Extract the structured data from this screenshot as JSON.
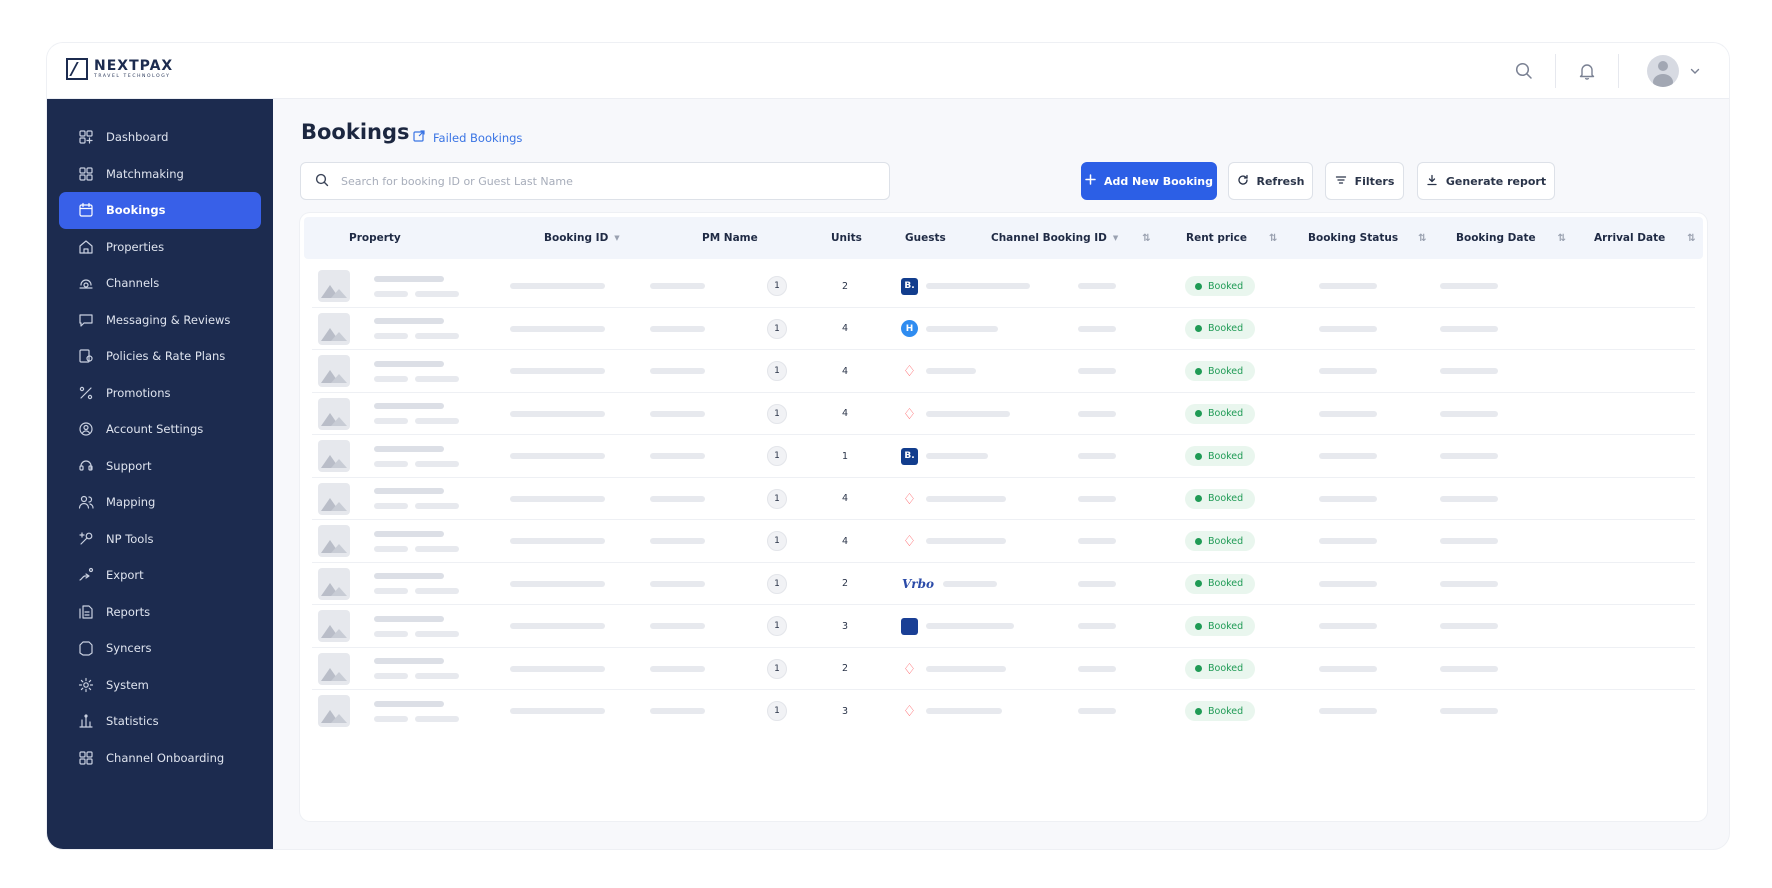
{
  "brand": {
    "name": "NEXTPAX",
    "tagline": "TRAVEL TECHNOLOGY"
  },
  "topbar": {
    "icons": [
      "search-icon",
      "bell-icon",
      "avatar",
      "chevron-down-icon"
    ]
  },
  "sidebar": {
    "items": [
      {
        "label": "Dashboard",
        "icon": "dashboard-icon",
        "active": false
      },
      {
        "label": "Matchmaking",
        "icon": "grid-icon",
        "active": false
      },
      {
        "label": "Bookings",
        "icon": "calendar-icon",
        "active": true
      },
      {
        "label": "Properties",
        "icon": "building-icon",
        "active": false
      },
      {
        "label": "Channels",
        "icon": "channels-icon",
        "active": false
      },
      {
        "label": "Messaging & Reviews",
        "icon": "message-icon",
        "active": false
      },
      {
        "label": "Policies & Rate Plans",
        "icon": "policy-icon",
        "active": false
      },
      {
        "label": "Promotions",
        "icon": "percent-icon",
        "active": false
      },
      {
        "label": "Account Settings",
        "icon": "account-icon",
        "active": false
      },
      {
        "label": "Support",
        "icon": "support-icon",
        "active": false
      },
      {
        "label": "Mapping",
        "icon": "users-icon",
        "active": false
      },
      {
        "label": "NP Tools",
        "icon": "tools-icon",
        "active": false
      },
      {
        "label": "Export",
        "icon": "export-icon",
        "active": false
      },
      {
        "label": "Reports",
        "icon": "reports-icon",
        "active": false
      },
      {
        "label": "Syncers",
        "icon": "sync-icon",
        "active": false
      },
      {
        "label": "System",
        "icon": "gear-icon",
        "active": false
      },
      {
        "label": "Statistics",
        "icon": "statistics-icon",
        "active": false
      },
      {
        "label": "Channel Onboarding",
        "icon": "grid-icon",
        "active": false
      }
    ]
  },
  "page": {
    "title": "Bookings",
    "failed_link": "Failed Bookings"
  },
  "search": {
    "placeholder": "Search for booking ID or Guest Last Name",
    "value": ""
  },
  "actions": {
    "add": "Add New Booking",
    "refresh": "Refresh",
    "filters": "Filters",
    "report": "Generate report"
  },
  "table": {
    "columns": [
      "Property",
      "Booking ID",
      "PM Name",
      "Units",
      "Guests",
      "Channel Booking ID",
      "Rent price",
      "Booking Status",
      "Booking Date",
      "Arrival Date"
    ],
    "rows": [
      {
        "units": "1",
        "guests": "2",
        "channel": "booking",
        "status": "Booked"
      },
      {
        "units": "1",
        "guests": "4",
        "channel": "hotels",
        "status": "Booked"
      },
      {
        "units": "1",
        "guests": "4",
        "channel": "airbnb",
        "status": "Booked"
      },
      {
        "units": "1",
        "guests": "4",
        "channel": "airbnb",
        "status": "Booked"
      },
      {
        "units": "1",
        "guests": "1",
        "channel": "booking",
        "status": "Booked"
      },
      {
        "units": "1",
        "guests": "4",
        "channel": "airbnb",
        "status": "Booked"
      },
      {
        "units": "1",
        "guests": "4",
        "channel": "airbnb",
        "status": "Booked"
      },
      {
        "units": "1",
        "guests": "2",
        "channel": "vrbo",
        "status": "Booked"
      },
      {
        "units": "1",
        "guests": "3",
        "channel": "expedia",
        "status": "Booked"
      },
      {
        "units": "1",
        "guests": "2",
        "channel": "airbnb",
        "status": "Booked"
      },
      {
        "units": "1",
        "guests": "3",
        "channel": "airbnb",
        "status": "Booked"
      }
    ],
    "channel_labels": {
      "booking": "B.",
      "hotels": "H",
      "airbnb": "♢",
      "vrbo": "Vrbo",
      "expedia": ""
    }
  },
  "colors": {
    "sidebar": "#1c2b4f",
    "accent": "#2c5fe6",
    "status_booked": "#1f9b55"
  }
}
